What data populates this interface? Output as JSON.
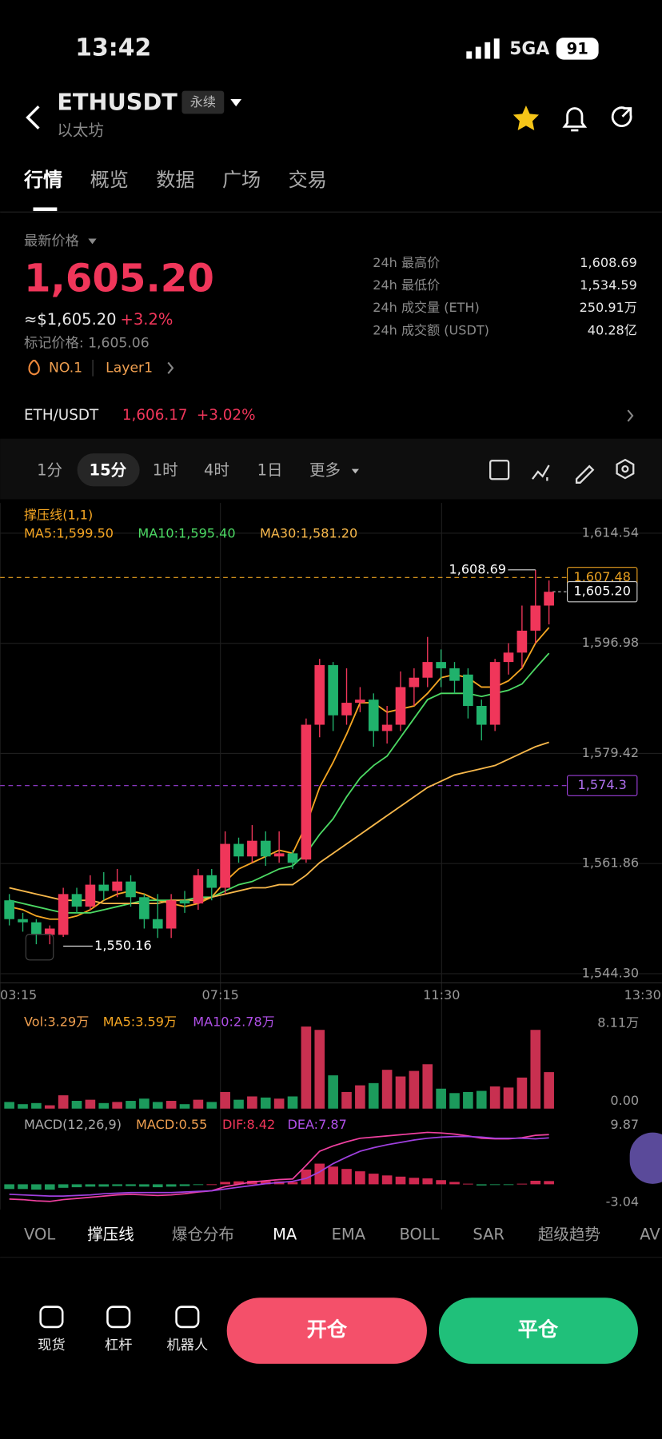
{
  "status": {
    "time": "13:42",
    "network": "5GA",
    "battery": "91"
  },
  "header": {
    "symbol": "ETHUSDT",
    "badge": "永续",
    "name": "以太坊"
  },
  "tabs": [
    "行情",
    "概览",
    "数据",
    "广场",
    "交易"
  ],
  "price": {
    "label": "最新价格",
    "last": "1,605.20",
    "usd": "≈$1,605.20",
    "change": "+3.2%",
    "mark": "标记价格: 1,605.06",
    "rank": "NO.1",
    "tag": "Layer1"
  },
  "stats": [
    [
      "24h 最高价",
      "1,608.69"
    ],
    [
      "24h 最低价",
      "1,534.59"
    ],
    [
      "24h 成交量 (ETH)",
      "250.91万"
    ],
    [
      "24h 成交额 (USDT)",
      "40.28亿"
    ]
  ],
  "pair": {
    "name": "ETH/USDT",
    "price": "1,606.17",
    "change": "+3.02%"
  },
  "intervals": [
    "1分",
    "15分",
    "1时",
    "4时",
    "1日",
    "更多"
  ],
  "indicators": [
    "VOL",
    "撑压线",
    "爆仓分布",
    "MA",
    "EMA",
    "BOLL",
    "SAR",
    "超级趋势",
    "AV"
  ],
  "bottom": {
    "items": [
      "现货",
      "杠杆",
      "机器人"
    ],
    "open": "开仓",
    "close": "平仓"
  },
  "chart_data": {
    "type": "candlestick",
    "indicator_label": "撑压线(1,1)",
    "up_color": "#f0365a",
    "down_color": "#20b26c",
    "candles": [
      {
        "o": 1556,
        "h": 1557,
        "l": 1552,
        "c": 1553
      },
      {
        "o": 1553,
        "h": 1554,
        "l": 1551,
        "c": 1552.5
      },
      {
        "o": 1552.5,
        "h": 1553,
        "l": 1549,
        "c": 1550.5
      },
      {
        "o": 1550.5,
        "h": 1552,
        "l": 1549,
        "c": 1551.5
      },
      {
        "o": 1550.5,
        "h": 1558,
        "l": 1550.16,
        "c": 1557
      },
      {
        "o": 1557,
        "h": 1558,
        "l": 1554,
        "c": 1555
      },
      {
        "o": 1555,
        "h": 1560,
        "l": 1554.5,
        "c": 1558.5
      },
      {
        "o": 1558.5,
        "h": 1560.5,
        "l": 1556,
        "c": 1557.5
      },
      {
        "o": 1557.5,
        "h": 1561,
        "l": 1556.5,
        "c": 1559
      },
      {
        "o": 1559,
        "h": 1560,
        "l": 1555,
        "c": 1556.5
      },
      {
        "o": 1556.5,
        "h": 1557,
        "l": 1551.5,
        "c": 1553
      },
      {
        "o": 1553,
        "h": 1557,
        "l": 1550,
        "c": 1551.5
      },
      {
        "o": 1551.5,
        "h": 1557,
        "l": 1550,
        "c": 1556
      },
      {
        "o": 1556,
        "h": 1557.5,
        "l": 1554,
        "c": 1555.5
      },
      {
        "o": 1555.5,
        "h": 1561,
        "l": 1554.5,
        "c": 1560
      },
      {
        "o": 1560,
        "h": 1561,
        "l": 1556,
        "c": 1558
      },
      {
        "o": 1558,
        "h": 1567,
        "l": 1557,
        "c": 1565
      },
      {
        "o": 1565,
        "h": 1566,
        "l": 1562,
        "c": 1563
      },
      {
        "o": 1563,
        "h": 1568,
        "l": 1562,
        "c": 1565.5
      },
      {
        "o": 1565.5,
        "h": 1567,
        "l": 1561.5,
        "c": 1563
      },
      {
        "o": 1563,
        "h": 1567,
        "l": 1562,
        "c": 1563.5
      },
      {
        "o": 1563.5,
        "h": 1564,
        "l": 1561,
        "c": 1562
      },
      {
        "o": 1562.5,
        "h": 1585,
        "l": 1562,
        "c": 1584
      },
      {
        "o": 1584,
        "h": 1594.5,
        "l": 1582,
        "c": 1593.5
      },
      {
        "o": 1593.5,
        "h": 1594,
        "l": 1583,
        "c": 1585.5
      },
      {
        "o": 1585.5,
        "h": 1593,
        "l": 1584,
        "c": 1587.5
      },
      {
        "o": 1587.5,
        "h": 1590,
        "l": 1586,
        "c": 1588
      },
      {
        "o": 1588,
        "h": 1589,
        "l": 1580.5,
        "c": 1583
      },
      {
        "o": 1583,
        "h": 1587,
        "l": 1581,
        "c": 1584
      },
      {
        "o": 1584,
        "h": 1592.5,
        "l": 1583,
        "c": 1590
      },
      {
        "o": 1590,
        "h": 1593,
        "l": 1587,
        "c": 1591.5
      },
      {
        "o": 1591.5,
        "h": 1598,
        "l": 1590,
        "c": 1594
      },
      {
        "o": 1594,
        "h": 1596,
        "l": 1590,
        "c": 1593
      },
      {
        "o": 1593,
        "h": 1594,
        "l": 1589,
        "c": 1591
      },
      {
        "o": 1592,
        "h": 1593,
        "l": 1585,
        "c": 1587
      },
      {
        "o": 1587,
        "h": 1588,
        "l": 1581.5,
        "c": 1584
      },
      {
        "o": 1584,
        "h": 1594.5,
        "l": 1583,
        "c": 1594
      },
      {
        "o": 1594,
        "h": 1597,
        "l": 1592,
        "c": 1595.5
      },
      {
        "o": 1595.5,
        "h": 1603,
        "l": 1593,
        "c": 1599
      },
      {
        "o": 1599,
        "h": 1608.69,
        "l": 1597,
        "c": 1603
      },
      {
        "o": 1603,
        "h": 1607,
        "l": 1600,
        "c": 1605.2
      }
    ],
    "series": [
      {
        "name": "MA5:1,599.50",
        "color": "#f5a623",
        "values": [
          1555,
          1554.5,
          1553.5,
          1553,
          1553,
          1553.5,
          1554.5,
          1556,
          1557,
          1557.5,
          1557,
          1556,
          1555.5,
          1555,
          1555.5,
          1556.5,
          1559,
          1561,
          1562,
          1563,
          1564,
          1563.5,
          1568,
          1574,
          1578,
          1582.5,
          1587.5,
          1587.5,
          1586,
          1586.5,
          1587,
          1589,
          1591.5,
          1592,
          1591.5,
          1590,
          1590,
          1591,
          1593,
          1597,
          1599.5
        ]
      },
      {
        "name": "MA10:1,595.40",
        "color": "#4cd964",
        "values": [
          1556,
          1555.5,
          1555,
          1554.5,
          1554,
          1554,
          1554,
          1554.5,
          1555,
          1555.5,
          1556,
          1556,
          1556,
          1556,
          1556.5,
          1556.5,
          1557.5,
          1558.5,
          1559,
          1560,
          1561,
          1561.5,
          1563.5,
          1566.5,
          1569,
          1572.5,
          1575.5,
          1577.5,
          1579,
          1582,
          1585,
          1588,
          1589,
          1589,
          1589,
          1588.5,
          1589,
          1589.5,
          1590.5,
          1593,
          1595.4
        ]
      },
      {
        "name": "MA30:1,581.20",
        "color": "#f7b84b",
        "values": [
          1558,
          1557.5,
          1557,
          1556.5,
          1556,
          1556,
          1556,
          1555.5,
          1555.5,
          1555.5,
          1555.5,
          1555.5,
          1556,
          1556,
          1556,
          1556.5,
          1557,
          1557.5,
          1558,
          1558,
          1558.5,
          1558.5,
          1560,
          1562,
          1563.5,
          1565,
          1566.5,
          1568,
          1569.5,
          1571,
          1572.5,
          1574,
          1575,
          1576,
          1576.5,
          1577,
          1577.5,
          1578.5,
          1579.5,
          1580.5,
          1581.2
        ]
      }
    ],
    "ylim": [
      1544.3,
      1614.54
    ],
    "yticks": [
      {
        "value": 1614.54,
        "label": "1,614.54"
      },
      {
        "value": 1596.98,
        "label": "1,596.98"
      },
      {
        "value": 1579.42,
        "label": "1,579.42"
      },
      {
        "value": 1561.86,
        "label": "1,561.86"
      },
      {
        "value": 1544.3,
        "label": "1,544.30"
      }
    ],
    "xlabels": [
      "03:15",
      "07:15",
      "11:30",
      "13:30"
    ],
    "annotations": [
      {
        "index": 39,
        "value": 1608.69,
        "label": "1,608.69"
      },
      {
        "index": 4,
        "value": 1550.16,
        "label": "1,550.16"
      }
    ],
    "levels": [
      {
        "value": 1607.48,
        "label": "1,607.48",
        "color": "#e8a020"
      },
      {
        "value": 1605.2,
        "label": "1,605.20",
        "color": "#cccccc"
      },
      {
        "value": 1574.3,
        "label": "1,574.3",
        "color": "#9b3fd8"
      }
    ],
    "volume": {
      "labels": [
        "Vol:3.29万",
        "MA5:3.59万",
        "MA10:2.78万"
      ],
      "values": [
        0.6,
        0.4,
        0.5,
        0.3,
        1.2,
        0.7,
        0.8,
        0.5,
        0.6,
        0.7,
        0.9,
        0.6,
        0.7,
        0.4,
        0.8,
        0.6,
        1.5,
        0.8,
        1.1,
        1.0,
        0.9,
        1.1,
        7.4,
        7.1,
        3.0,
        1.5,
        2.1,
        2.3,
        3.5,
        2.9,
        3.4,
        4.0,
        1.8,
        1.4,
        1.5,
        1.6,
        2.0,
        1.9,
        2.8,
        7.1,
        3.29
      ],
      "ylim": [
        0,
        8.11
      ],
      "yticks": [
        {
          "value": 8.11,
          "label": "8.11万"
        },
        {
          "value": 0,
          "label": "0.00"
        }
      ]
    },
    "macd": {
      "labels": [
        "MACD(12,26,9)",
        "MACD:0.55",
        "DIF:8.42",
        "DEA:7.87"
      ],
      "hist": [
        -0.8,
        -0.8,
        -0.9,
        -0.9,
        -0.6,
        -0.5,
        -0.4,
        -0.4,
        -0.3,
        -0.3,
        -0.4,
        -0.5,
        -0.4,
        -0.3,
        -0.1,
        0.0,
        0.4,
        0.5,
        0.6,
        0.5,
        0.5,
        0.4,
        2.5,
        3.5,
        3.0,
        2.6,
        2.2,
        1.8,
        1.5,
        1.3,
        1.1,
        1.0,
        0.7,
        0.4,
        0.1,
        -0.2,
        -0.1,
        -0.1,
        0.1,
        0.6,
        0.55
      ],
      "dif": [
        -2.5,
        -2.6,
        -2.8,
        -2.9,
        -2.6,
        -2.4,
        -2.2,
        -2.0,
        -1.8,
        -1.7,
        -1.8,
        -1.9,
        -1.8,
        -1.6,
        -1.3,
        -1.1,
        -0.4,
        0,
        0.4,
        0.6,
        0.8,
        0.9,
        3.2,
        5.6,
        6.5,
        7.2,
        7.8,
        8.0,
        8.2,
        8.4,
        8.6,
        8.8,
        8.7,
        8.5,
        8.2,
        7.8,
        7.7,
        7.7,
        7.9,
        8.3,
        8.42
      ],
      "dea": [
        -1.7,
        -1.8,
        -1.9,
        -2.0,
        -2.0,
        -1.9,
        -1.8,
        -1.6,
        -1.5,
        -1.4,
        -1.4,
        -1.4,
        -1.4,
        -1.3,
        -1.2,
        -1.1,
        -0.8,
        -0.5,
        -0.2,
        0.1,
        0.3,
        0.5,
        1.0,
        2.1,
        3.5,
        4.6,
        5.6,
        6.2,
        6.7,
        7.1,
        7.5,
        7.8,
        8.0,
        8.1,
        8.1,
        8.0,
        7.8,
        7.8,
        7.8,
        7.7,
        7.87
      ],
      "ylim": [
        -3.04,
        9.87
      ],
      "yticks": [
        9.87,
        -3.04
      ]
    }
  }
}
